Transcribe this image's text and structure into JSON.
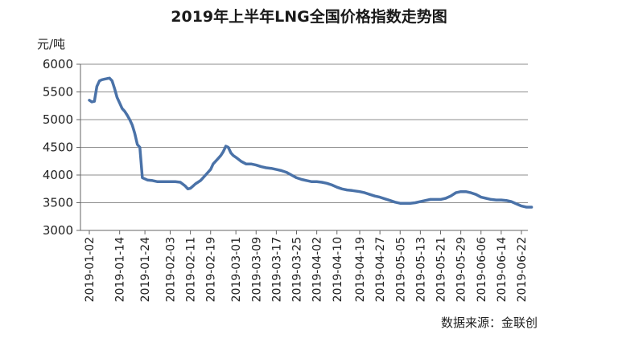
{
  "chart_data": {
    "type": "line",
    "title": "2019年上半年LNG全国价格指数走势图",
    "y_unit_label": "元/吨",
    "source": "数据来源：金联创",
    "ylim": [
      3000,
      6000
    ],
    "y_ticks": [
      3000,
      3500,
      4000,
      4500,
      5000,
      5500,
      6000
    ],
    "x_ticks": [
      "2019-01-02",
      "2019-01-14",
      "2019-01-24",
      "2019-02-03",
      "2019-02-11",
      "2019-02-19",
      "2019-03-01",
      "2019-03-09",
      "2019-03-17",
      "2019-03-25",
      "2019-04-02",
      "2019-04-10",
      "2019-04-19",
      "2019-04-27",
      "2019-05-05",
      "2019-05-13",
      "2019-05-21",
      "2019-05-29",
      "2019-06-06",
      "2019-06-14",
      "2019-06-22"
    ],
    "grid": true,
    "series": [
      {
        "color": "#4a72a8",
        "x": [
          "2019-01-02",
          "2019-01-03",
          "2019-01-04",
          "2019-01-05",
          "2019-01-06",
          "2019-01-07",
          "2019-01-08",
          "2019-01-09",
          "2019-01-10",
          "2019-01-11",
          "2019-01-12",
          "2019-01-13",
          "2019-01-14",
          "2019-01-15",
          "2019-01-16",
          "2019-01-17",
          "2019-01-18",
          "2019-01-19",
          "2019-01-20",
          "2019-01-21",
          "2019-01-22",
          "2019-01-23",
          "2019-01-24",
          "2019-01-25",
          "2019-01-27",
          "2019-01-29",
          "2019-01-31",
          "2019-02-01",
          "2019-02-03",
          "2019-02-05",
          "2019-02-07",
          "2019-02-09",
          "2019-02-10",
          "2019-02-11",
          "2019-02-12",
          "2019-02-13",
          "2019-02-15",
          "2019-02-17",
          "2019-02-19",
          "2019-02-20",
          "2019-02-21",
          "2019-02-22",
          "2019-02-23",
          "2019-02-24",
          "2019-02-25",
          "2019-02-26",
          "2019-02-27",
          "2019-02-28",
          "2019-03-01",
          "2019-03-03",
          "2019-03-05",
          "2019-03-07",
          "2019-03-09",
          "2019-03-11",
          "2019-03-13",
          "2019-03-15",
          "2019-03-17",
          "2019-03-19",
          "2019-03-21",
          "2019-03-23",
          "2019-03-25",
          "2019-03-27",
          "2019-03-29",
          "2019-03-31",
          "2019-04-02",
          "2019-04-04",
          "2019-04-06",
          "2019-04-08",
          "2019-04-10",
          "2019-04-12",
          "2019-04-14",
          "2019-04-16",
          "2019-04-19",
          "2019-04-21",
          "2019-04-23",
          "2019-04-25",
          "2019-04-27",
          "2019-04-29",
          "2019-05-01",
          "2019-05-03",
          "2019-05-05",
          "2019-05-07",
          "2019-05-09",
          "2019-05-11",
          "2019-05-13",
          "2019-05-15",
          "2019-05-17",
          "2019-05-19",
          "2019-05-21",
          "2019-05-23",
          "2019-05-25",
          "2019-05-27",
          "2019-05-29",
          "2019-05-31",
          "2019-06-02",
          "2019-06-04",
          "2019-06-06",
          "2019-06-08",
          "2019-06-10",
          "2019-06-12",
          "2019-06-14",
          "2019-06-16",
          "2019-06-18",
          "2019-06-20",
          "2019-06-22",
          "2019-06-24",
          "2019-06-26"
        ],
        "values": [
          5350,
          5320,
          5330,
          5600,
          5700,
          5720,
          5730,
          5740,
          5750,
          5700,
          5560,
          5400,
          5300,
          5200,
          5150,
          5080,
          5000,
          4900,
          4750,
          4550,
          4500,
          3950,
          3930,
          3910,
          3900,
          3880,
          3880,
          3880,
          3880,
          3880,
          3870,
          3800,
          3750,
          3760,
          3800,
          3840,
          3900,
          4000,
          4100,
          4200,
          4250,
          4300,
          4350,
          4420,
          4520,
          4500,
          4400,
          4350,
          4320,
          4250,
          4200,
          4200,
          4180,
          4150,
          4130,
          4120,
          4100,
          4080,
          4050,
          4000,
          3950,
          3920,
          3900,
          3880,
          3880,
          3870,
          3850,
          3820,
          3780,
          3750,
          3730,
          3720,
          3700,
          3680,
          3650,
          3620,
          3600,
          3570,
          3540,
          3510,
          3490,
          3490,
          3490,
          3500,
          3520,
          3540,
          3560,
          3560,
          3560,
          3580,
          3620,
          3680,
          3700,
          3700,
          3680,
          3650,
          3600,
          3580,
          3560,
          3550,
          3550,
          3540,
          3520,
          3480,
          3440,
          3420,
          3420
        ]
      }
    ]
  }
}
